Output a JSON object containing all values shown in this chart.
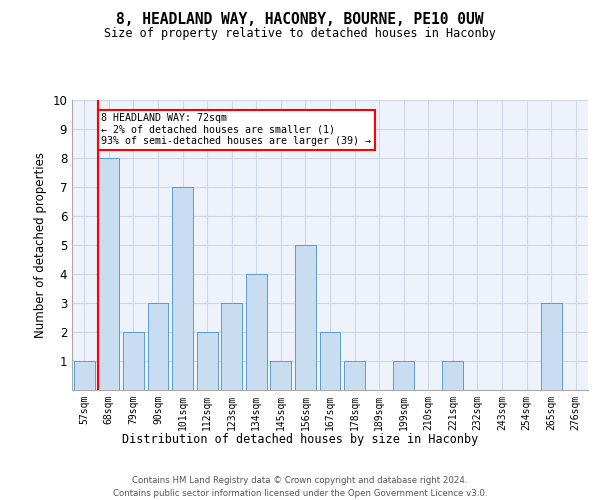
{
  "title1": "8, HEADLAND WAY, HACONBY, BOURNE, PE10 0UW",
  "title2": "Size of property relative to detached houses in Haconby",
  "xlabel": "Distribution of detached houses by size in Haconby",
  "ylabel": "Number of detached properties",
  "categories": [
    "57sqm",
    "68sqm",
    "79sqm",
    "90sqm",
    "101sqm",
    "112sqm",
    "123sqm",
    "134sqm",
    "145sqm",
    "156sqm",
    "167sqm",
    "178sqm",
    "189sqm",
    "199sqm",
    "210sqm",
    "221sqm",
    "232sqm",
    "243sqm",
    "254sqm",
    "265sqm",
    "276sqm"
  ],
  "values": [
    1,
    8,
    2,
    3,
    7,
    2,
    3,
    4,
    1,
    5,
    2,
    1,
    0,
    1,
    0,
    1,
    0,
    0,
    0,
    3,
    0
  ],
  "bar_color": "#c9ddf0",
  "bar_edge_color": "#5b9bd5",
  "annotation_text": "8 HEADLAND WAY: 72sqm\n← 2% of detached houses are smaller (1)\n93% of semi-detached houses are larger (39) →",
  "annotation_box_color": "white",
  "annotation_box_edge_color": "red",
  "vline_color": "red",
  "ylim": [
    0,
    10
  ],
  "yticks": [
    0,
    1,
    2,
    3,
    4,
    5,
    6,
    7,
    8,
    9,
    10
  ],
  "grid_color": "#d0d8e8",
  "footnote1": "Contains HM Land Registry data © Crown copyright and database right 2024.",
  "footnote2": "Contains public sector information licensed under the Open Government Licence v3.0.",
  "bg_color": "#edf2fb"
}
